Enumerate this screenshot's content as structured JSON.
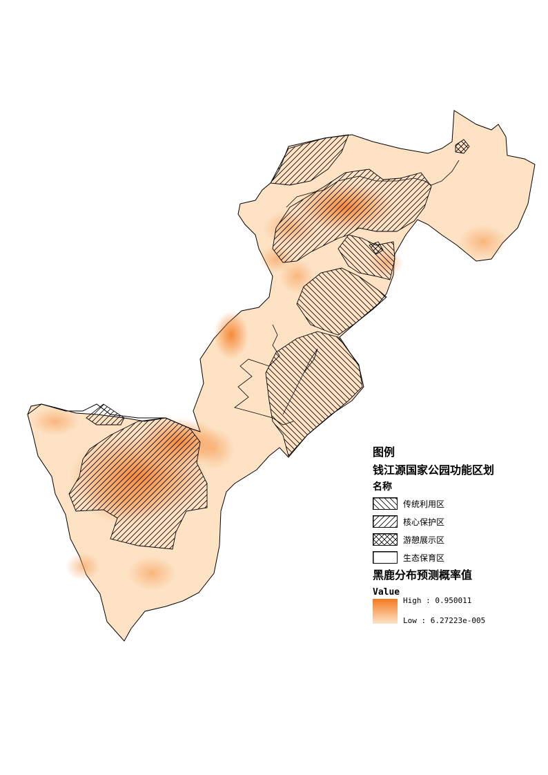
{
  "legend": {
    "title": "图例",
    "layer_name": "钱江源国家公园功能区划",
    "field_name": "名称",
    "zones": [
      {
        "label": "传统利用区",
        "pattern": "hatch-back"
      },
      {
        "label": "核心保护区",
        "pattern": "hatch-fwd"
      },
      {
        "label": "游憩展示区",
        "pattern": "hatch-cross"
      },
      {
        "label": "生态保育区",
        "pattern": "none"
      }
    ],
    "raster_name": "黑鹿分布预测概率值",
    "value_label": "Value",
    "high_label": "High : 0.950011",
    "low_label": "Low : 6.27223e-005"
  },
  "colors": {
    "high": "#f47a20",
    "low": "#fde3c6",
    "base": "#fde2c4",
    "outline": "#000000"
  }
}
